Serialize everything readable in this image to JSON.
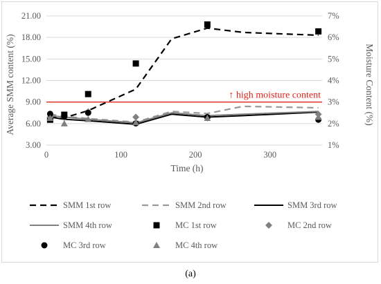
{
  "panel_label": "(a)",
  "chart_data": {
    "type": "line",
    "xlabel": "Time  (h)",
    "ylabel": "Average SMM content (%)",
    "y2label": "Moisture Content (%)",
    "xlim": [
      0,
      370
    ],
    "x_ticks": [
      0,
      100,
      200,
      300
    ],
    "ylim": [
      3,
      21
    ],
    "y_ticks": [
      "3.00",
      "6.00",
      "9.00",
      "12.00",
      "15.00",
      "18.00",
      "21.00"
    ],
    "y2lim": [
      1,
      7
    ],
    "y2_ticks": [
      "1%",
      "2%",
      "3%",
      "4%",
      "5%",
      "6%",
      "7%"
    ],
    "grid": "horizontal",
    "legend_position": "bottom",
    "threshold": {
      "y": 9.0,
      "label": "↑ high moisture content",
      "color": "#e0201b"
    },
    "series": [
      {
        "name": "SMM 1st row",
        "axis": "left",
        "style": "line",
        "dash": "9,6",
        "color": "#000000",
        "width": 2.2,
        "x": [
          5,
          24,
          56,
          120,
          168,
          216,
          264,
          365
        ],
        "y": [
          6.9,
          6.8,
          7.8,
          10.8,
          17.8,
          19.3,
          18.7,
          18.3
        ]
      },
      {
        "name": "SMM 2nd row",
        "axis": "left",
        "style": "line",
        "dash": "9,6",
        "color": "#999999",
        "width": 2.2,
        "x": [
          5,
          24,
          56,
          120,
          168,
          216,
          264,
          365
        ],
        "y": [
          7.3,
          7.0,
          6.7,
          6.2,
          7.7,
          7.4,
          8.4,
          8.2
        ]
      },
      {
        "name": "SMM 3rd row",
        "axis": "left",
        "style": "line",
        "dash": "",
        "color": "#000000",
        "width": 2,
        "x": [
          5,
          24,
          56,
          120,
          168,
          216,
          264,
          365
        ],
        "y": [
          6.9,
          6.6,
          6.4,
          5.9,
          7.3,
          6.9,
          7.1,
          7.6
        ]
      },
      {
        "name": "SMM 4th row",
        "axis": "left",
        "style": "line",
        "dash": "",
        "color": "#808080",
        "width": 2,
        "x": [
          5,
          24,
          56,
          120,
          168,
          216,
          264,
          365
        ],
        "y": [
          7.1,
          6.9,
          6.6,
          6.1,
          7.5,
          7.1,
          7.3,
          7.7
        ]
      },
      {
        "name": "MC 1st row",
        "axis": "right",
        "style": "marker",
        "marker": "square",
        "color": "#000000",
        "x": [
          5,
          24,
          56,
          120,
          216,
          365
        ],
        "y": [
          2.18,
          2.41,
          3.37,
          4.79,
          6.6,
          6.28
        ]
      },
      {
        "name": "MC 2nd row",
        "axis": "right",
        "style": "marker",
        "marker": "diamond",
        "color": "#808080",
        "x": [
          5,
          24,
          56,
          120,
          216,
          365
        ],
        "y": [
          2.3,
          2.28,
          2.55,
          2.3,
          2.26,
          2.43
        ]
      },
      {
        "name": "MC 3rd row",
        "axis": "right",
        "style": "marker",
        "marker": "circle",
        "color": "#000000",
        "x": [
          5,
          24,
          56,
          120,
          216,
          365
        ],
        "y": [
          2.45,
          2.33,
          2.5,
          2.01,
          2.3,
          2.18
        ]
      },
      {
        "name": "MC 4th row",
        "axis": "right",
        "style": "marker",
        "marker": "triangle",
        "color": "#808080",
        "x": [
          5,
          24,
          56,
          120,
          216,
          365
        ],
        "y": [
          2.25,
          2.0,
          2.2,
          2.05,
          2.25,
          2.3
        ]
      }
    ]
  }
}
